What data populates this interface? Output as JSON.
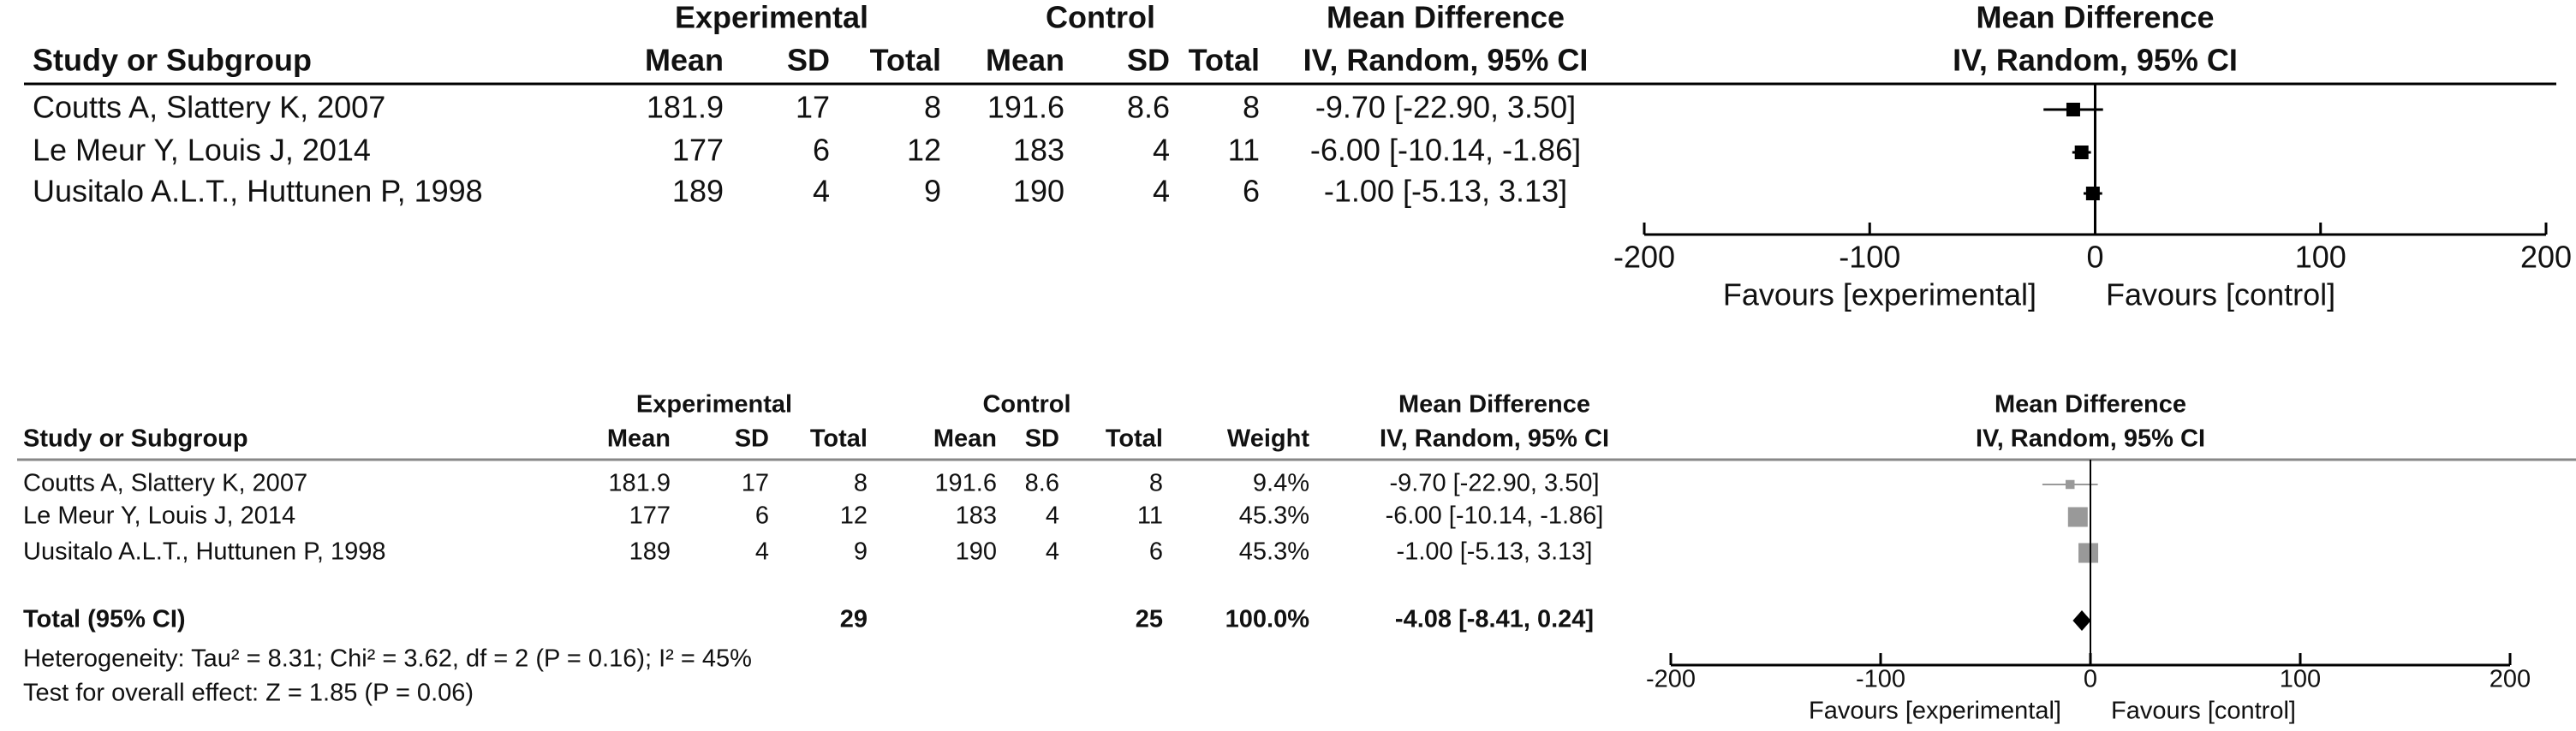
{
  "chart_data": [
    {
      "type": "forest",
      "headers": {
        "study": "Study or Subgroup",
        "experimental": "Experimental",
        "control": "Control",
        "mean": "Mean",
        "sd": "SD",
        "total": "Total",
        "md": "Mean Difference",
        "md_method": "IV, Random, 95% CI"
      },
      "studies": [
        {
          "name": "Coutts A, Slattery K, 2007",
          "exp_mean": 181.9,
          "exp_sd": 17,
          "exp_total": 8,
          "ctl_mean": 191.6,
          "ctl_sd": 8.6,
          "ctl_total": 8,
          "md": -9.7,
          "ci": [
            -22.9,
            3.5
          ],
          "md_label": "-9.70 [-22.90, 3.50]"
        },
        {
          "name": "Le Meur Y, Louis J, 2014",
          "exp_mean": 177,
          "exp_sd": 6,
          "exp_total": 12,
          "ctl_mean": 183,
          "ctl_sd": 4,
          "ctl_total": 11,
          "md": -6.0,
          "ci": [
            -10.14,
            -1.86
          ],
          "md_label": "-6.00 [-10.14, -1.86]"
        },
        {
          "name": "Uusitalo A.L.T., Huttunen P, 1998",
          "exp_mean": 189,
          "exp_sd": 4,
          "exp_total": 9,
          "ctl_mean": 190,
          "ctl_sd": 4,
          "ctl_total": 6,
          "md": -1.0,
          "ci": [
            -5.13,
            3.13
          ],
          "md_label": "-1.00 [-5.13, 3.13]"
        }
      ],
      "xlim": [
        -200,
        200
      ],
      "xticks": [
        -200,
        -100,
        0,
        100,
        200
      ],
      "favours_left": "Favours [experimental]",
      "favours_right": "Favours [control]",
      "color": "#000000"
    },
    {
      "type": "forest",
      "headers": {
        "study": "Study or Subgroup",
        "experimental": "Experimental",
        "control": "Control",
        "mean": "Mean",
        "sd": "SD",
        "total": "Total",
        "weight": "Weight",
        "md": "Mean Difference",
        "md_method": "IV, Random, 95% CI"
      },
      "studies": [
        {
          "name": "Coutts A, Slattery K, 2007",
          "exp_mean": 181.9,
          "exp_sd": 17,
          "exp_total": 8,
          "ctl_mean": 191.6,
          "ctl_sd": 8.6,
          "ctl_total": 8,
          "weight": 9.4,
          "weight_label": "9.4%",
          "md": -9.7,
          "ci": [
            -22.9,
            3.5
          ],
          "md_label": "-9.70 [-22.90, 3.50]"
        },
        {
          "name": "Le Meur Y, Louis J, 2014",
          "exp_mean": 177,
          "exp_sd": 6,
          "exp_total": 12,
          "ctl_mean": 183,
          "ctl_sd": 4,
          "ctl_total": 11,
          "weight": 45.3,
          "weight_label": "45.3%",
          "md": -6.0,
          "ci": [
            -10.14,
            -1.86
          ],
          "md_label": "-6.00 [-10.14, -1.86]"
        },
        {
          "name": "Uusitalo A.L.T., Huttunen P, 1998",
          "exp_mean": 189,
          "exp_sd": 4,
          "exp_total": 9,
          "ctl_mean": 190,
          "ctl_sd": 4,
          "ctl_total": 6,
          "weight": 45.3,
          "weight_label": "45.3%",
          "md": -1.0,
          "ci": [
            -5.13,
            3.13
          ],
          "md_label": "-1.00 [-5.13, 3.13]"
        }
      ],
      "total": {
        "name": "Total (95% CI)",
        "exp_total": 29,
        "ctl_total": 25,
        "weight": 100.0,
        "weight_label": "100.0%",
        "md": -4.08,
        "ci": [
          -8.41,
          0.24
        ],
        "md_label": "-4.08 [-8.41, 0.24]"
      },
      "heterogeneity": "Heterogeneity: Tau² = 8.31; Chi² = 3.62, df = 2 (P = 0.16); I² = 45%",
      "overall_effect": "Test for overall effect: Z = 1.85 (P = 0.06)",
      "xlim": [
        -200,
        200
      ],
      "xticks": [
        -200,
        -100,
        0,
        100,
        200
      ],
      "favours_left": "Favours [experimental]",
      "favours_right": "Favours [control]",
      "color": "#999999"
    }
  ]
}
